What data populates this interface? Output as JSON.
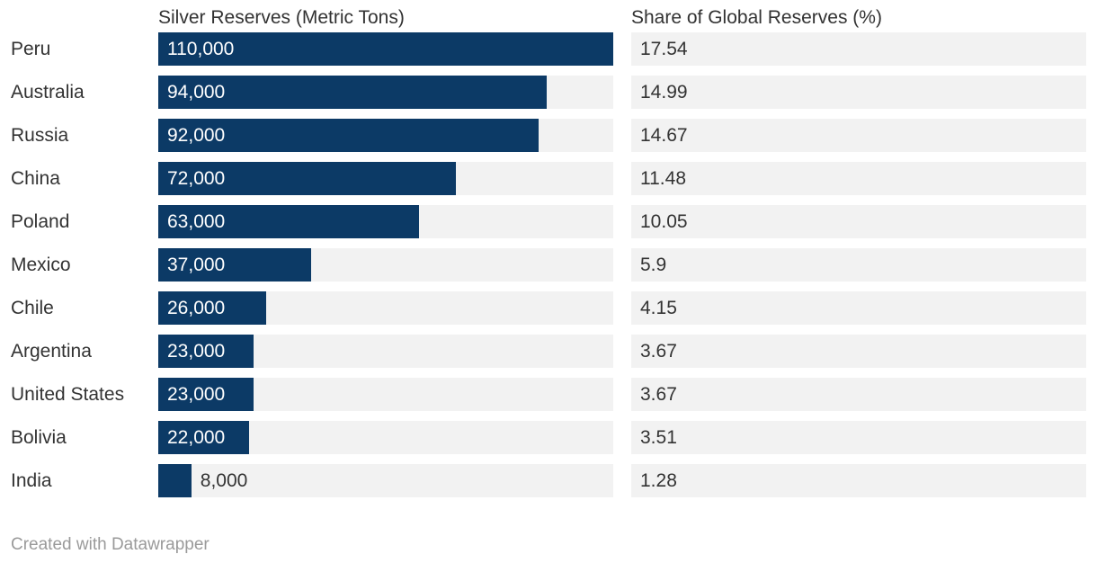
{
  "chart": {
    "columns": {
      "bars_header": "Silver Reserves (Metric Tons)",
      "share_header": "Share of Global Reserves (%)"
    },
    "footer": {
      "attribution": "Created with Datawrapper"
    },
    "colors": {
      "bar": "#0c3a66",
      "row_background": "#f2f2f2",
      "text": "#333333",
      "bar_label": "#ffffff",
      "attribution": "#9a9a9a"
    }
  },
  "chart_data": {
    "type": "bar",
    "orientation": "horizontal",
    "title": "",
    "categories": [
      "Peru",
      "Australia",
      "Russia",
      "China",
      "Poland",
      "Mexico",
      "Chile",
      "Argentina",
      "United States",
      "Bolivia",
      "India"
    ],
    "series": [
      {
        "name": "Silver Reserves (Metric Tons)",
        "values": [
          110000,
          94000,
          92000,
          72000,
          63000,
          37000,
          26000,
          23000,
          23000,
          22000,
          8000
        ],
        "labels": [
          "110,000",
          "94,000",
          "92,000",
          "72,000",
          "63,000",
          "37,000",
          "26,000",
          "23,000",
          "23,000",
          "22,000",
          "8,000"
        ]
      },
      {
        "name": "Share of Global Reserves (%)",
        "values": [
          17.54,
          14.99,
          14.67,
          11.48,
          10.05,
          5.9,
          4.15,
          3.67,
          3.67,
          3.51,
          1.28
        ],
        "labels": [
          "17.54",
          "14.99",
          "14.67",
          "11.48",
          "10.05",
          "5.9",
          "4.15",
          "3.67",
          "3.67",
          "3.51",
          "1.28"
        ]
      }
    ],
    "xlim": [
      0,
      110000
    ],
    "grid": false,
    "legend": "none"
  }
}
